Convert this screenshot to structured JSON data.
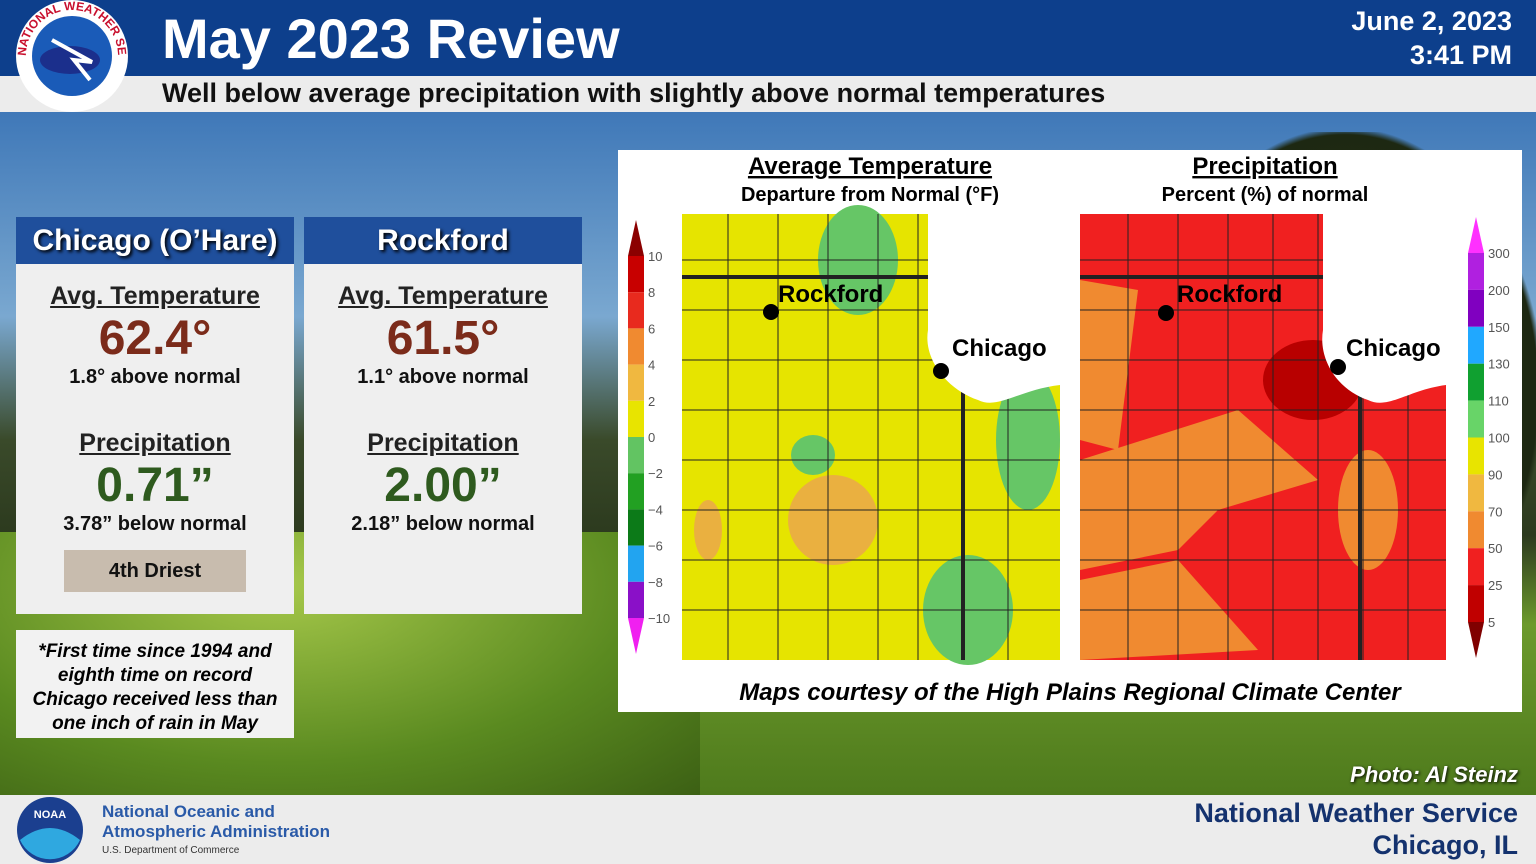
{
  "header": {
    "logo_text": "NATIONAL WEATHER SERVICE",
    "title": "May 2023 Review",
    "date": "June 2, 2023",
    "time": "3:41 PM",
    "subtitle": "Well below average precipitation with slightly above normal temperatures"
  },
  "panels": [
    {
      "name": "Chicago (O’Hare)",
      "temp_heading": "Avg. Temperature",
      "temp": "62.4°",
      "temp_note": "1.8° above normal",
      "precip_heading": "Precipitation",
      "precip": "0.71”",
      "precip_note": "3.78” below normal",
      "badge": "4th Driest"
    },
    {
      "name": "Rockford",
      "temp_heading": "Avg. Temperature",
      "temp": "61.5°",
      "temp_note": "1.1° above normal",
      "precip_heading": "Precipitation",
      "precip": "2.00”",
      "precip_note": "2.18” below normal"
    }
  ],
  "note": "*First time since 1994 and eighth time on record Chicago received less than one inch of rain in May",
  "maps": {
    "courtesy": "Maps courtesy of the High Plains Regional Climate Center",
    "temperature": {
      "title": "Average Temperature",
      "subtitle": "Departure from Normal (°F)",
      "cities": [
        "Rockford",
        "Chicago"
      ],
      "legend_labels": [
        "10",
        "8",
        "6",
        "4",
        "2",
        "0",
        "−2",
        "−4",
        "−6",
        "−8",
        "−10"
      ],
      "legend_colors": [
        "#8b0000",
        "#c80000",
        "#e82a1e",
        "#f08a30",
        "#f0b840",
        "#e8e400",
        "#62c462",
        "#22a022",
        "#0c7a18",
        "#22a4f0",
        "#8a10c8",
        "#f020f0"
      ]
    },
    "precipitation": {
      "title": "Precipitation",
      "subtitle": "Percent (%) of normal",
      "cities": [
        "Rockford",
        "Chicago"
      ],
      "legend_labels": [
        "300",
        "200",
        "150",
        "130",
        "110",
        "100",
        "90",
        "70",
        "50",
        "25",
        "5"
      ],
      "legend_colors": [
        "#ff30ff",
        "#b020e0",
        "#8000c0",
        "#20a8ff",
        "#10a030",
        "#68d468",
        "#e8e400",
        "#f0b840",
        "#f08a30",
        "#f02020",
        "#c00000",
        "#800000"
      ]
    }
  },
  "photo_credit": "Photo: Al Steinz",
  "footer": {
    "noaa_logo": "NOAA",
    "agency_line1": "National Oceanic and",
    "agency_line2": "Atmospheric Administration",
    "department": "U.S. Department of Commerce",
    "office": "National Weather Service",
    "location": "Chicago, IL"
  }
}
